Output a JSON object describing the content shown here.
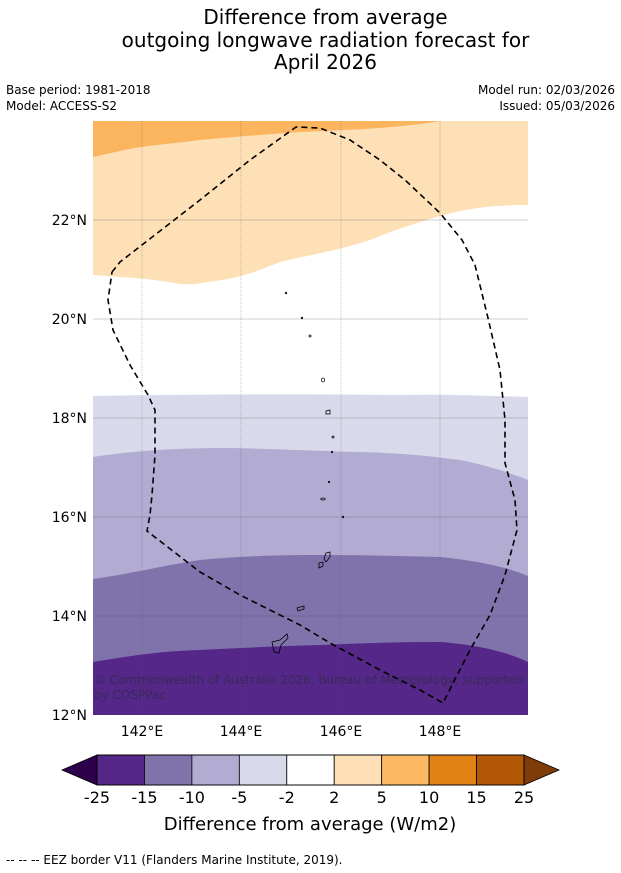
{
  "title": {
    "line1": "Difference from average",
    "line2": "outgoing longwave radiation forecast for",
    "line3": "April 2026"
  },
  "meta": {
    "base_period": "Base period: 1981-2018",
    "model": "Model: ACCESS-S2",
    "model_run": "Model run: 02/03/2026",
    "issued": "Issued: 05/03/2026"
  },
  "map": {
    "lat_range": [
      12,
      24
    ],
    "lon_range": [
      141,
      149.8
    ],
    "lat_labels": [
      "22°N",
      "20°N",
      "18°N",
      "16°N",
      "14°N",
      "12°N"
    ],
    "lon_labels": [
      "142°E",
      "144°E",
      "146°E",
      "148°E"
    ],
    "copyright": "© Commonwealth of Australia 2026, Bureau of Meteorology, supported by COSPPac",
    "colors": {
      "orange_dark": "#fbb55f",
      "orange_light": "#fee0b6",
      "purple_1": "#d8daeb",
      "purple_2": "#b2abd2",
      "purple_3": "#8073ac",
      "purple_4": "#542788"
    }
  },
  "colorbar": {
    "label": "Difference from average (W/m2)",
    "ticks": [
      "-25",
      "-15",
      "-10",
      "-5",
      "-2",
      "2",
      "5",
      "10",
      "15",
      "25"
    ],
    "colors": [
      "#542788",
      "#8073ac",
      "#b2abd2",
      "#d8daeb",
      "#ffffff",
      "#fee0b6",
      "#fdb863",
      "#e08214",
      "#b35806"
    ],
    "under_color": "#2d004b",
    "over_color": "#7f3b08"
  },
  "footer": {
    "legend": "--  --  -- EEZ border V11 (Flanders Marine Institute, 2019)."
  }
}
